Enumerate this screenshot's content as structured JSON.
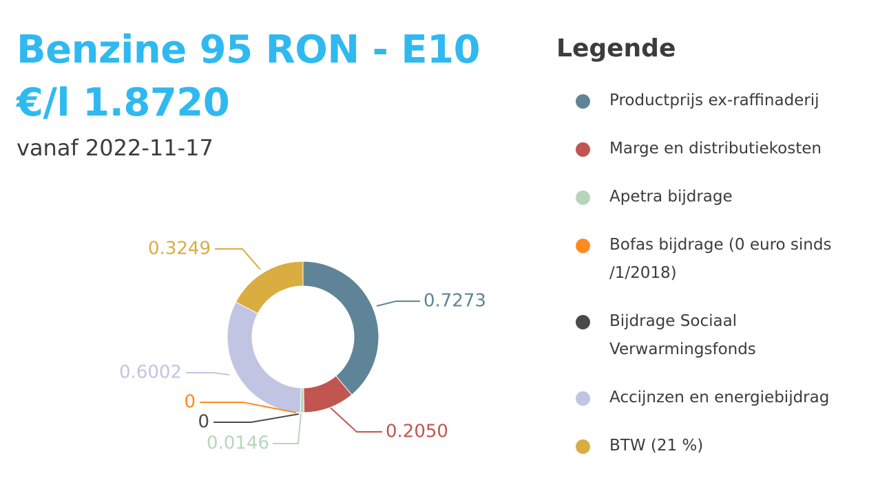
{
  "header": {
    "title": "Benzine 95 RON - E10",
    "price": "€/l 1.8720",
    "since": "vanaf 2022-11-17"
  },
  "legend": {
    "title": "Legende",
    "items": [
      {
        "label": "Productprijs ex-raffinaderij",
        "color": "#5f8497"
      },
      {
        "label": "Marge en distributiekosten",
        "color": "#c0564f"
      },
      {
        "label": "Apetra bijdrage",
        "color": "#b6d6ba"
      },
      {
        "label": "Bofas bijdrage (0 euro sinds /1/2018)",
        "color": "#ff8a1f"
      },
      {
        "label": "Bijdrage Sociaal Verwarmingsfonds",
        "color": "#4a4a4a"
      },
      {
        "label": "Accijnzen en energiebijdrag",
        "color": "#c2c4e3"
      },
      {
        "label": "BTW (21 %)",
        "color": "#d9ad3f"
      }
    ]
  },
  "chart_data": {
    "type": "pie",
    "donut": true,
    "categories": [
      "Productprijs ex-raffinaderij",
      "Marge en distributiekosten",
      "Apetra bijdrage",
      "Bofas bijdrage (0 euro sinds /1/2018)",
      "Bijdrage Sociaal Verwarmingsfonds",
      "Accijnzen en energiebijdrag",
      "BTW (21 %)"
    ],
    "values": [
      0.7273,
      0.205,
      0.0146,
      0,
      0,
      0.6002,
      0.3249
    ],
    "labels": [
      "0.7273",
      "0.2050",
      "0.0146",
      "0",
      "0",
      "0.6002",
      "0.3249"
    ],
    "colors": [
      "#5f8497",
      "#c0564f",
      "#b6d6ba",
      "#ff8a1f",
      "#4a4a4a",
      "#c2c4e3",
      "#d9ad3f"
    ]
  }
}
